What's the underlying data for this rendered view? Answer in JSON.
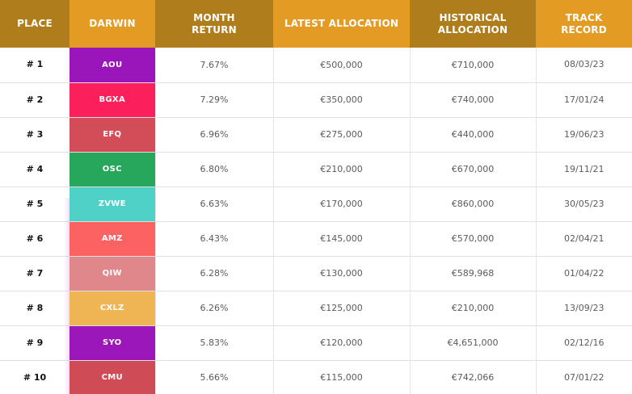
{
  "header": {
    "place": "PLACE",
    "darwin": "DARWIN",
    "month_line1": "MONTH",
    "month_line2": "RETURN",
    "latest": "LATEST ALLOCATION",
    "hist_line1": "HISTORICAL",
    "hist_line2": "ALLOCATION",
    "track": "TRACK RECORD"
  },
  "colors": {
    "header_dark": "#b07d1d",
    "header_light": "#e39b24"
  },
  "rows": [
    {
      "place": "# 1",
      "darwin": "AOU",
      "color": "#9a16ba",
      "month_return": "7.67%",
      "latest": "€500,000",
      "historical": "€710,000",
      "track": "08/03/23"
    },
    {
      "place": "# 2",
      "darwin": "BGXA",
      "color": "#fb1f5b",
      "month_return": "7.29%",
      "latest": "€350,000",
      "historical": "€740,000",
      "track": "17/01/24"
    },
    {
      "place": "# 3",
      "darwin": "EFQ",
      "color": "#d34d58",
      "month_return": "6.96%",
      "latest": "€275,000",
      "historical": "€440,000",
      "track": "19/06/23"
    },
    {
      "place": "# 4",
      "darwin": "OSC",
      "color": "#27a75b",
      "month_return": "6.80%",
      "latest": "€210,000",
      "historical": "€670,000",
      "track": "19/11/21"
    },
    {
      "place": "# 5",
      "darwin": "ZVWE",
      "color": "#4fd1c8",
      "month_return": "6.63%",
      "latest": "€170,000",
      "historical": "€860,000",
      "track": "30/05/23"
    },
    {
      "place": "# 6",
      "darwin": "AMZ",
      "color": "#fb6362",
      "month_return": "6.43%",
      "latest": "€145,000",
      "historical": "€570,000",
      "track": "02/04/21"
    },
    {
      "place": "# 7",
      "darwin": "QIW",
      "color": "#e0878c",
      "month_return": "6.28%",
      "latest": "€130,000",
      "historical": "€589,968",
      "track": "01/04/22"
    },
    {
      "place": "# 8",
      "darwin": "CXLZ",
      "color": "#f0b553",
      "month_return": "6.26%",
      "latest": "€125,000",
      "historical": "€210,000",
      "track": "13/09/23"
    },
    {
      "place": "# 9",
      "darwin": "SYO",
      "color": "#9b17b9",
      "month_return": "5.83%",
      "latest": "€120,000",
      "historical": "€4,651,000",
      "track": "02/12/16"
    },
    {
      "place": "# 10",
      "darwin": "CMU",
      "color": "#cf4b56",
      "month_return": "5.66%",
      "latest": "€115,000",
      "historical": "€742,066",
      "track": "07/01/22"
    }
  ]
}
